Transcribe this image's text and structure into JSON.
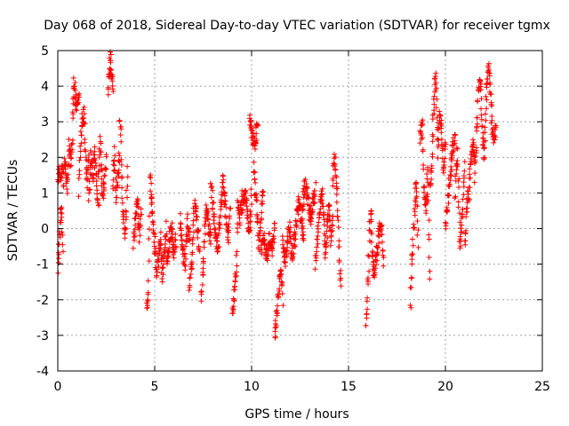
{
  "chart_data": {
    "type": "scatter",
    "title": "Day 068 of 2018, Sidereal Day-to-day VTEC variation (SDTVAR) for receiver tgmx",
    "xlabel": "GPS time / hours",
    "ylabel": "SDTVAR / TECUs",
    "xlim": [
      0,
      25
    ],
    "ylim": [
      -4,
      5
    ],
    "xticks": [
      "0",
      "5",
      "10",
      "15",
      "20",
      "25"
    ],
    "yticks": [
      "-4",
      "-3",
      "-2",
      "-1",
      "0",
      "1",
      "2",
      "3",
      "4",
      "5"
    ],
    "grid": true,
    "marker": "plus",
    "color": "#ff0000",
    "series": [
      {
        "name": "SDTVAR",
        "segments": [
          {
            "x0": 0.0,
            "x1": 0.3,
            "y": [
              1.4,
              1.7,
              1.5,
              1.8,
              1.3
            ]
          },
          {
            "x0": 0.0,
            "x1": 0.25,
            "y": [
              -1.2,
              -0.8,
              -0.3,
              0.0,
              0.5,
              0.2,
              -0.5
            ]
          },
          {
            "x0": 0.35,
            "x1": 0.75,
            "y": [
              2.0,
              1.5,
              1.1,
              2.3,
              1.8,
              2.4
            ]
          },
          {
            "x0": 0.75,
            "x1": 1.1,
            "y": [
              3.2,
              4.1,
              3.6,
              3.3,
              3.8
            ]
          },
          {
            "x0": 1.1,
            "x1": 1.6,
            "y": [
              1.0,
              2.5,
              3.0,
              3.3,
              2.2,
              1.3,
              2.0
            ]
          },
          {
            "x0": 1.6,
            "x1": 2.1,
            "y": [
              0.8,
              2.0,
              1.5,
              2.2,
              1.2,
              0.5
            ]
          },
          {
            "x0": 2.1,
            "x1": 2.5,
            "y": [
              1.5,
              2.5,
              0.8,
              1.3,
              2.0
            ]
          },
          {
            "x0": 2.6,
            "x1": 2.85,
            "y": [
              3.8,
              4.5,
              4.9,
              4.2,
              3.9
            ]
          },
          {
            "x0": 2.85,
            "x1": 3.2,
            "y": [
              1.2,
              2.2,
              0.9,
              1.6,
              2.0
            ]
          },
          {
            "x0": 3.2,
            "x1": 3.6,
            "y": [
              3.2,
              2.4,
              1.0,
              0.2,
              -0.2,
              0.5,
              1.8
            ]
          },
          {
            "x0": 3.9,
            "x1": 4.3,
            "y": [
              -0.5,
              0.3,
              0.8,
              -0.2,
              0.4
            ]
          },
          {
            "x0": 4.6,
            "x1": 5.0,
            "y": [
              -2.2,
              -1.8,
              1.5,
              0.9,
              0.2,
              -0.5
            ]
          },
          {
            "x0": 5.0,
            "x1": 5.6,
            "y": [
              -0.3,
              -1.2,
              -0.8,
              -0.2,
              -1.4,
              -0.6,
              0.0
            ]
          },
          {
            "x0": 5.6,
            "x1": 6.1,
            "y": [
              -1.0,
              -0.5,
              0.1,
              -0.7,
              -0.3
            ]
          },
          {
            "x0": 6.3,
            "x1": 6.8,
            "y": [
              0.3,
              -0.5,
              -1.0,
              0.2,
              -0.3
            ]
          },
          {
            "x0": 6.8,
            "x1": 7.3,
            "y": [
              -1.6,
              -0.9,
              0.8,
              0.3,
              -0.6
            ]
          },
          {
            "x0": 7.4,
            "x1": 7.9,
            "y": [
              -1.9,
              -1.0,
              0.7,
              0.1,
              -0.4
            ]
          },
          {
            "x0": 7.9,
            "x1": 8.5,
            "y": [
              1.3,
              0.5,
              -0.2,
              -0.6,
              0.4,
              1.1
            ]
          },
          {
            "x0": 8.5,
            "x1": 8.9,
            "y": [
              1.5,
              0.9,
              0.2,
              -0.4,
              0.6
            ]
          },
          {
            "x0": 9.0,
            "x1": 9.5,
            "y": [
              -2.5,
              -1.8,
              -1.3,
              0.8,
              0.2,
              1.0
            ]
          },
          {
            "x0": 9.5,
            "x1": 10.0,
            "y": [
              0.3,
              1.0,
              0.6,
              -0.2,
              0.9
            ]
          },
          {
            "x0": 9.9,
            "x1": 10.3,
            "y": [
              3.0,
              2.6,
              2.4,
              2.9
            ]
          },
          {
            "x0": 10.1,
            "x1": 10.6,
            "y": [
              1.8,
              1.0,
              0.2,
              -0.5,
              0.4,
              1.2
            ]
          },
          {
            "x0": 10.5,
            "x1": 11.2,
            "y": [
              -0.5,
              -0.2,
              -0.8,
              -0.3,
              -0.6,
              0.0
            ]
          },
          {
            "x0": 11.2,
            "x1": 11.6,
            "y": [
              -3.1,
              -2.5,
              -1.8,
              -1.2,
              -2.0
            ]
          },
          {
            "x0": 11.6,
            "x1": 12.2,
            "y": [
              -0.3,
              -1.0,
              -0.5,
              0.0,
              -0.8,
              -0.3
            ]
          },
          {
            "x0": 12.2,
            "x1": 12.7,
            "y": [
              -0.5,
              0.3,
              0.8,
              0.2,
              -0.3
            ]
          },
          {
            "x0": 12.6,
            "x1": 13.3,
            "y": [
              0.5,
              1.2,
              0.9,
              0.3,
              0.7,
              1.1
            ]
          },
          {
            "x0": 13.3,
            "x1": 13.8,
            "y": [
              -1.0,
              -0.3,
              0.4,
              1.1,
              0.6,
              -0.5
            ]
          },
          {
            "x0": 13.8,
            "x1": 14.2,
            "y": [
              -0.8,
              0.0,
              0.6,
              -0.3,
              0.3
            ]
          },
          {
            "x0": 14.2,
            "x1": 14.6,
            "y": [
              1.2,
              2.1,
              1.4,
              0.6,
              -0.5,
              -1.8
            ]
          },
          {
            "x0": 15.9,
            "x1": 16.2,
            "y": [
              -2.8,
              -2.0,
              -0.7,
              0.5,
              0.0
            ]
          },
          {
            "x0": 16.2,
            "x1": 16.8,
            "y": [
              -0.5,
              -1.3,
              -0.8,
              -0.2,
              0.3,
              -1.0
            ]
          },
          {
            "x0": 18.2,
            "x1": 18.6,
            "y": [
              -2.2,
              -1.0,
              0.0,
              0.8,
              1.2,
              -0.5
            ]
          },
          {
            "x0": 18.7,
            "x1": 19.2,
            "y": [
              2.5,
              3.0,
              1.0,
              0.5,
              1.8,
              -1.5
            ]
          },
          {
            "x0": 19.2,
            "x1": 19.6,
            "y": [
              1.0,
              2.0,
              3.5,
              4.3,
              2.5
            ]
          },
          {
            "x0": 19.6,
            "x1": 20.0,
            "y": [
              2.2,
              3.2,
              2.8,
              1.6,
              2.5
            ]
          },
          {
            "x0": 20.0,
            "x1": 20.5,
            "y": [
              0.0,
              0.8,
              1.5,
              2.2,
              2.6
            ]
          },
          {
            "x0": 20.5,
            "x1": 21.0,
            "y": [
              1.0,
              2.2,
              -0.4,
              0.3,
              1.8
            ]
          },
          {
            "x0": 21.0,
            "x1": 21.5,
            "y": [
              -0.3,
              0.5,
              1.0,
              1.8,
              2.4,
              2.0
            ]
          },
          {
            "x0": 21.5,
            "x1": 22.0,
            "y": [
              1.5,
              2.5,
              3.8,
              4.2,
              2.8,
              2.0
            ]
          },
          {
            "x0": 22.0,
            "x1": 22.6,
            "y": [
              2.0,
              3.5,
              4.6,
              4.2,
              3.0,
              2.5,
              2.8
            ]
          }
        ]
      }
    ]
  }
}
